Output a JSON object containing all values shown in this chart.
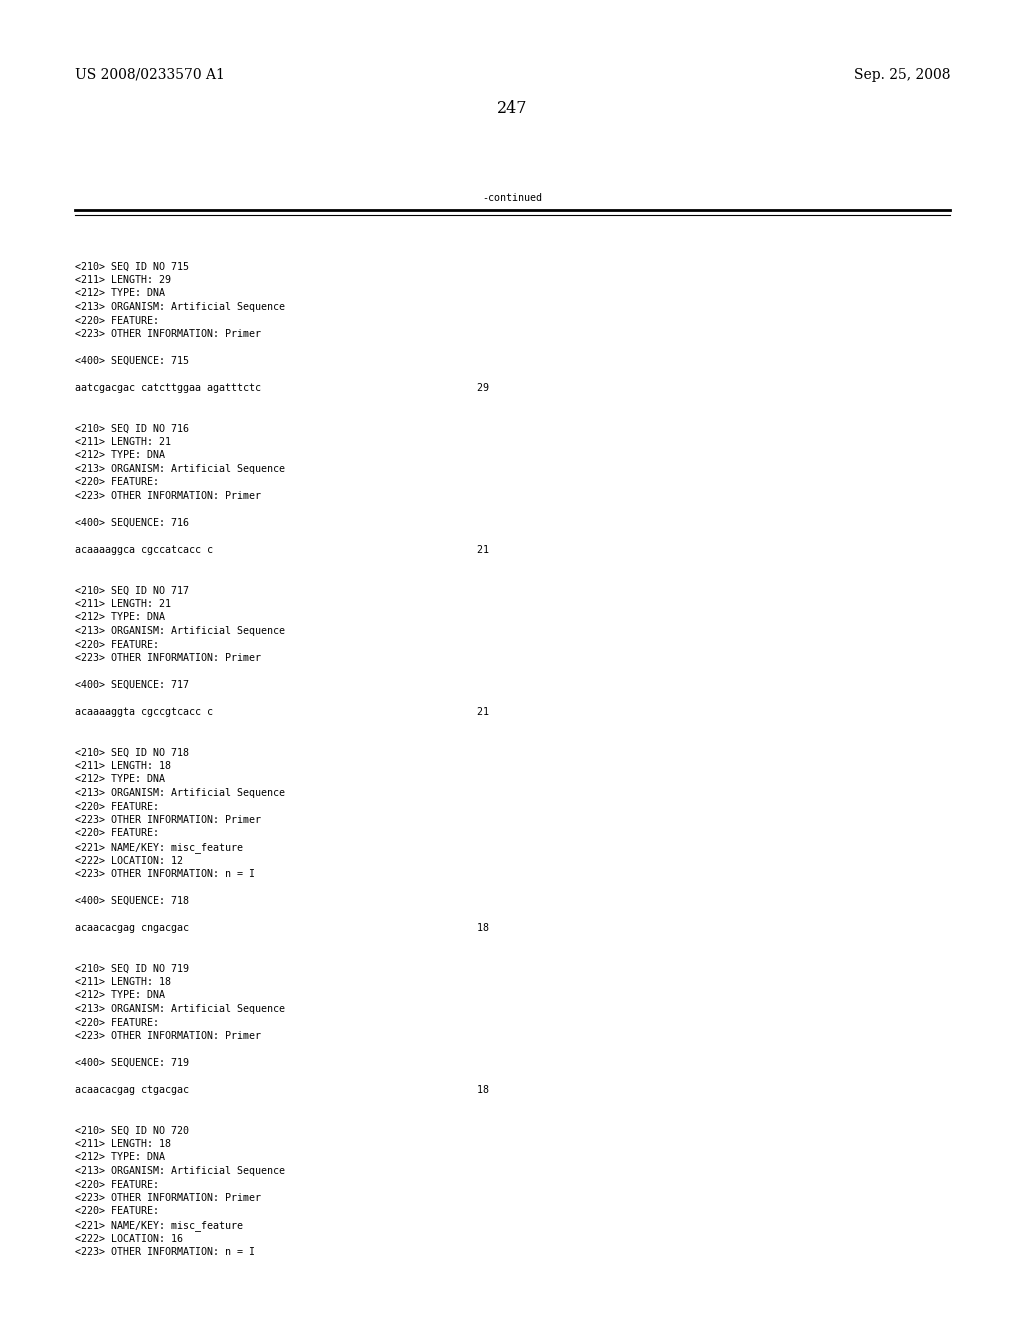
{
  "background_color": "#ffffff",
  "page_number": "247",
  "left_header": "US 2008/0233570 A1",
  "right_header": "Sep. 25, 2008",
  "continued_text": "-continued",
  "font_size_header": 10.0,
  "font_size_mono": 7.2,
  "font_size_page_num": 11.5,
  "content_lines": [
    "",
    "<210> SEQ ID NO 715",
    "<211> LENGTH: 29",
    "<212> TYPE: DNA",
    "<213> ORGANISM: Artificial Sequence",
    "<220> FEATURE:",
    "<223> OTHER INFORMATION: Primer",
    "",
    "<400> SEQUENCE: 715",
    "",
    "aatcgacgac catcttggaa agatttctc                                    29",
    "",
    "",
    "<210> SEQ ID NO 716",
    "<211> LENGTH: 21",
    "<212> TYPE: DNA",
    "<213> ORGANISM: Artificial Sequence",
    "<220> FEATURE:",
    "<223> OTHER INFORMATION: Primer",
    "",
    "<400> SEQUENCE: 716",
    "",
    "acaaaaggca cgccatcacc c                                            21",
    "",
    "",
    "<210> SEQ ID NO 717",
    "<211> LENGTH: 21",
    "<212> TYPE: DNA",
    "<213> ORGANISM: Artificial Sequence",
    "<220> FEATURE:",
    "<223> OTHER INFORMATION: Primer",
    "",
    "<400> SEQUENCE: 717",
    "",
    "acaaaaggta cgccgtcacc c                                            21",
    "",
    "",
    "<210> SEQ ID NO 718",
    "<211> LENGTH: 18",
    "<212> TYPE: DNA",
    "<213> ORGANISM: Artificial Sequence",
    "<220> FEATURE:",
    "<223> OTHER INFORMATION: Primer",
    "<220> FEATURE:",
    "<221> NAME/KEY: misc_feature",
    "<222> LOCATION: 12",
    "<223> OTHER INFORMATION: n = I",
    "",
    "<400> SEQUENCE: 718",
    "",
    "acaacacgag cngacgac                                                18",
    "",
    "",
    "<210> SEQ ID NO 719",
    "<211> LENGTH: 18",
    "<212> TYPE: DNA",
    "<213> ORGANISM: Artificial Sequence",
    "<220> FEATURE:",
    "<223> OTHER INFORMATION: Primer",
    "",
    "<400> SEQUENCE: 719",
    "",
    "acaacacgag ctgacgac                                                18",
    "",
    "",
    "<210> SEQ ID NO 720",
    "<211> LENGTH: 18",
    "<212> TYPE: DNA",
    "<213> ORGANISM: Artificial Sequence",
    "<220> FEATURE:",
    "<223> OTHER INFORMATION: Primer",
    "<220> FEATURE:",
    "<221> NAME/KEY: misc_feature",
    "<222> LOCATION: 16",
    "<223> OTHER INFORMATION: n = I"
  ]
}
